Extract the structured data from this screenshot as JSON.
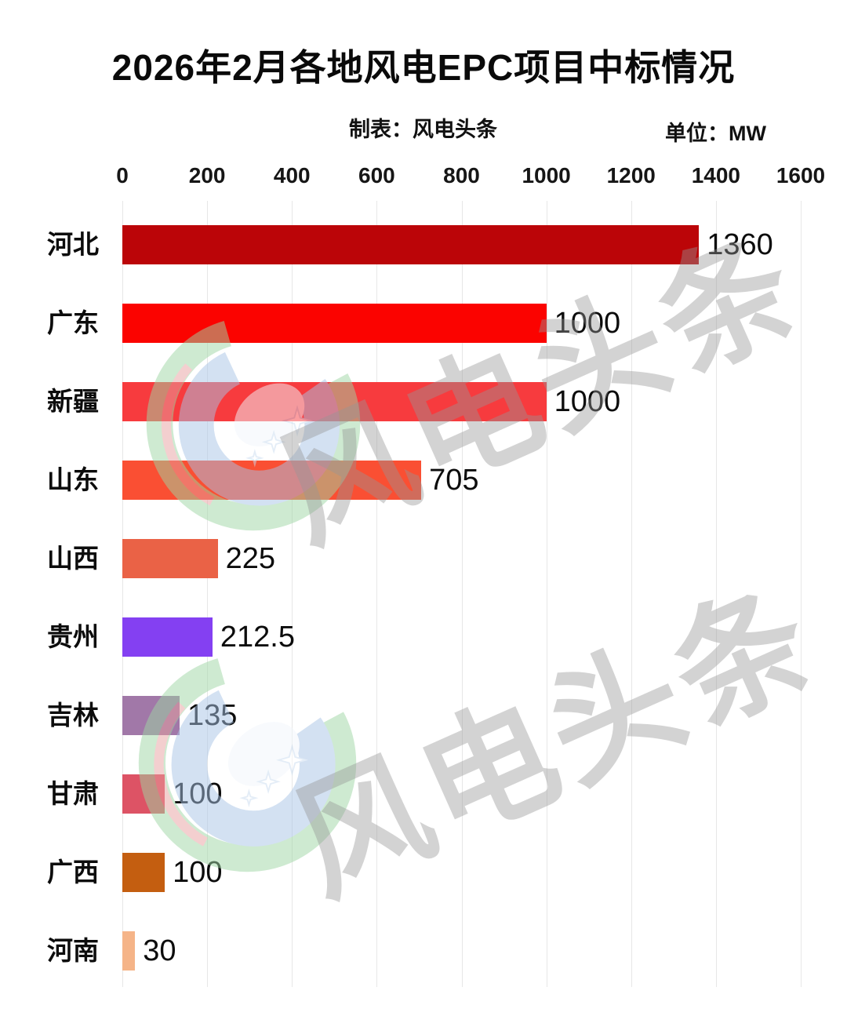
{
  "title": "2026年2月各地风电EPC项目中标情况",
  "meta": {
    "credit": "制表：风电头条",
    "unit": "单位：MW"
  },
  "watermark": {
    "text": "风电头条",
    "text_color": "#d9d9d9",
    "logo_colors": {
      "green": "#9ed6a4",
      "blue": "#a8c4e6",
      "red": "#e8a0a0",
      "star": "#ffffff"
    }
  },
  "chart_data": {
    "type": "bar",
    "orientation": "horizontal",
    "title": "2026年2月各地风电EPC项目中标情况",
    "unit": "MW",
    "categories": [
      "河北",
      "广东",
      "新疆",
      "山东",
      "山西",
      "贵州",
      "吉林",
      "甘肃",
      "广西",
      "河南"
    ],
    "values": [
      1360,
      1000,
      1000,
      705,
      225,
      212.5,
      135,
      100,
      100,
      30
    ],
    "value_labels": [
      "1360",
      "1000",
      "1000",
      "705",
      "225",
      "212.5",
      "135",
      "100",
      "100",
      "30"
    ],
    "bar_colors": [
      "#bb0508",
      "#fb0300",
      "#f73b3e",
      "#fa4f33",
      "#ea6246",
      "#8440f2",
      "#a178a8",
      "#dd5365",
      "#c45e10",
      "#f5b488"
    ],
    "x_ticks": [
      0,
      200,
      400,
      600,
      800,
      1000,
      1200,
      1400,
      1600
    ],
    "xlim": [
      0,
      1600
    ],
    "xlabel": "",
    "ylabel": "",
    "grid": true,
    "legend": "none"
  }
}
